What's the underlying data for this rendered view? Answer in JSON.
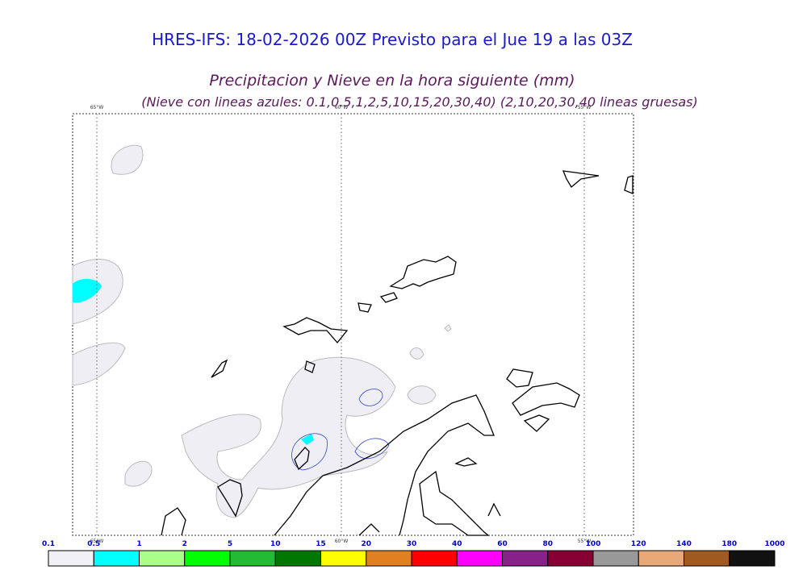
{
  "header": {
    "title": "HRES-IFS: 18-02-2026 00Z Previsto para el Jue 19 a las 03Z",
    "subtitle": "Precipitacion y Nieve en la hora siguiente (mm)",
    "note": "(Nieve con lineas azules: 0.1,0.5,1,2,5,10,15,20,30,40)  (2,10,20,30,40 lineas gruesas)"
  },
  "map": {
    "longitude_labels": [
      "65°W",
      "60°W",
      "55°W"
    ]
  },
  "colorbar": {
    "levels": [
      0.1,
      0.5,
      1,
      2,
      5,
      10,
      15,
      20,
      30,
      40,
      60,
      80,
      100,
      120,
      140,
      180,
      1000
    ],
    "colors": [
      "#f0f0f5",
      "#00ffff",
      "#aaff88",
      "#00ff00",
      "#22bb33",
      "#007700",
      "#ffff00",
      "#e08020",
      "#ff0000",
      "#ff00ff",
      "#882288",
      "#880033",
      "#999999",
      "#e8a878",
      "#a05a20",
      "#111111"
    ]
  }
}
